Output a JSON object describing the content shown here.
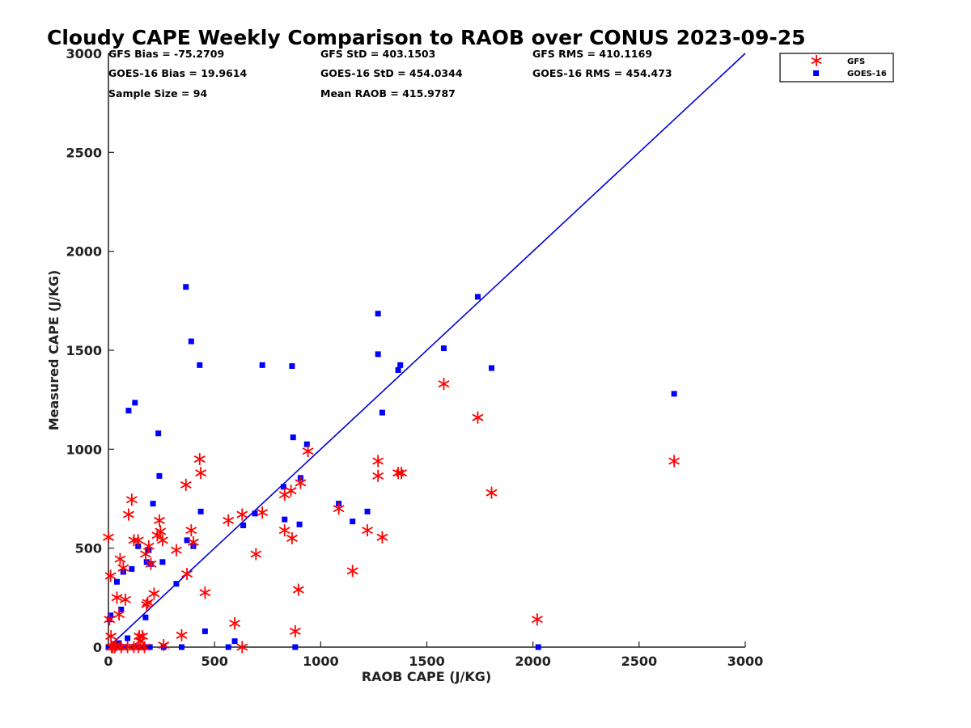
{
  "chart_data": {
    "type": "scatter",
    "title": "Cloudy CAPE Weekly Comparison to RAOB over CONUS 2023-09-25",
    "xlabel": "RAOB CAPE (J/KG)",
    "ylabel": "Measured CAPE (J/KG)",
    "xlim": [
      0,
      3000
    ],
    "ylim": [
      0,
      3000
    ],
    "xticks": [
      "0",
      "500",
      "1000",
      "1500",
      "2000",
      "2500",
      "3000"
    ],
    "yticks": [
      "0",
      "500",
      "1000",
      "1500",
      "2000",
      "2500",
      "3000"
    ],
    "grid": false,
    "legend_position": "top-right",
    "stats": {
      "gfs_bias": "GFS Bias = -75.2709",
      "gfs_std": "GFS StD = 403.1503",
      "gfs_rms": "GFS RMS = 410.1169",
      "goes_bias": "GOES-16 Bias = 19.9614",
      "goes_std": "GOES-16 StD = 454.0344",
      "goes_rms": "GOES-16 RMS = 454.473",
      "sample_size": "Sample Size = 94",
      "mean_raob": "Mean RAOB = 415.9787"
    },
    "reference_line": {
      "x": [
        0,
        3000
      ],
      "y": [
        0,
        3000
      ],
      "color": "#0000dd"
    },
    "series": [
      {
        "name": "GFS",
        "marker": "asterisk",
        "color": "#ff0000",
        "points": [
          [
            0,
            555
          ],
          [
            5,
            140
          ],
          [
            10,
            360
          ],
          [
            12,
            55
          ],
          [
            15,
            0
          ],
          [
            20,
            0
          ],
          [
            30,
            0
          ],
          [
            35,
            10
          ],
          [
            40,
            250
          ],
          [
            50,
            165
          ],
          [
            55,
            445
          ],
          [
            60,
            0
          ],
          [
            70,
            400
          ],
          [
            80,
            240
          ],
          [
            90,
            0
          ],
          [
            95,
            670
          ],
          [
            110,
            745
          ],
          [
            120,
            540
          ],
          [
            120,
            0
          ],
          [
            140,
            540
          ],
          [
            140,
            0
          ],
          [
            145,
            55
          ],
          [
            150,
            30
          ],
          [
            160,
            55
          ],
          [
            170,
            0
          ],
          [
            175,
            470
          ],
          [
            180,
            215
          ],
          [
            185,
            225
          ],
          [
            190,
            510
          ],
          [
            200,
            420
          ],
          [
            215,
            270
          ],
          [
            230,
            565
          ],
          [
            240,
            640
          ],
          [
            245,
            585
          ],
          [
            255,
            540
          ],
          [
            260,
            10
          ],
          [
            320,
            490
          ],
          [
            345,
            60
          ],
          [
            365,
            820
          ],
          [
            370,
            370
          ],
          [
            390,
            590
          ],
          [
            400,
            530
          ],
          [
            430,
            950
          ],
          [
            435,
            880
          ],
          [
            455,
            275
          ],
          [
            565,
            640
          ],
          [
            595,
            120
          ],
          [
            630,
            670
          ],
          [
            630,
            0
          ],
          [
            695,
            470
          ],
          [
            725,
            680
          ],
          [
            830,
            770
          ],
          [
            830,
            590
          ],
          [
            860,
            790
          ],
          [
            865,
            550
          ],
          [
            880,
            80
          ],
          [
            895,
            290
          ],
          [
            905,
            830
          ],
          [
            940,
            990
          ],
          [
            1085,
            700
          ],
          [
            1150,
            385
          ],
          [
            1220,
            590
          ],
          [
            1270,
            940
          ],
          [
            1270,
            865
          ],
          [
            1290,
            555
          ],
          [
            1365,
            880
          ],
          [
            1380,
            880
          ],
          [
            1580,
            1330
          ],
          [
            1740,
            1160
          ],
          [
            1805,
            780
          ],
          [
            2020,
            140
          ],
          [
            2665,
            940
          ]
        ]
      },
      {
        "name": "GOES-16",
        "marker": "square",
        "color": "#0000ff",
        "points": [
          [
            0,
            0
          ],
          [
            5,
            0
          ],
          [
            5,
            140
          ],
          [
            10,
            160
          ],
          [
            15,
            0
          ],
          [
            20,
            5
          ],
          [
            30,
            0
          ],
          [
            40,
            330
          ],
          [
            45,
            0
          ],
          [
            50,
            20
          ],
          [
            60,
            190
          ],
          [
            65,
            0
          ],
          [
            70,
            380
          ],
          [
            80,
            0
          ],
          [
            90,
            45
          ],
          [
            95,
            1195
          ],
          [
            110,
            395
          ],
          [
            120,
            0
          ],
          [
            125,
            1235
          ],
          [
            140,
            510
          ],
          [
            150,
            0
          ],
          [
            170,
            0
          ],
          [
            175,
            150
          ],
          [
            180,
            430
          ],
          [
            190,
            490
          ],
          [
            195,
            0
          ],
          [
            200,
            420
          ],
          [
            210,
            725
          ],
          [
            235,
            1080
          ],
          [
            240,
            865
          ],
          [
            255,
            430
          ],
          [
            260,
            0
          ],
          [
            320,
            320
          ],
          [
            345,
            0
          ],
          [
            365,
            1820
          ],
          [
            370,
            540
          ],
          [
            390,
            1545
          ],
          [
            400,
            510
          ],
          [
            430,
            1425
          ],
          [
            435,
            685
          ],
          [
            455,
            80
          ],
          [
            565,
            0
          ],
          [
            595,
            30
          ],
          [
            635,
            615
          ],
          [
            690,
            675
          ],
          [
            725,
            1425
          ],
          [
            825,
            810
          ],
          [
            830,
            645
          ],
          [
            865,
            1420
          ],
          [
            870,
            1060
          ],
          [
            880,
            0
          ],
          [
            900,
            620
          ],
          [
            905,
            855
          ],
          [
            935,
            1025
          ],
          [
            1085,
            725
          ],
          [
            1150,
            635
          ],
          [
            1220,
            685
          ],
          [
            1270,
            1685
          ],
          [
            1270,
            1480
          ],
          [
            1290,
            1185
          ],
          [
            1365,
            1400
          ],
          [
            1375,
            1425
          ],
          [
            1580,
            1510
          ],
          [
            1740,
            1770
          ],
          [
            1805,
            1410
          ],
          [
            2025,
            0
          ],
          [
            2665,
            1280
          ]
        ]
      }
    ]
  }
}
